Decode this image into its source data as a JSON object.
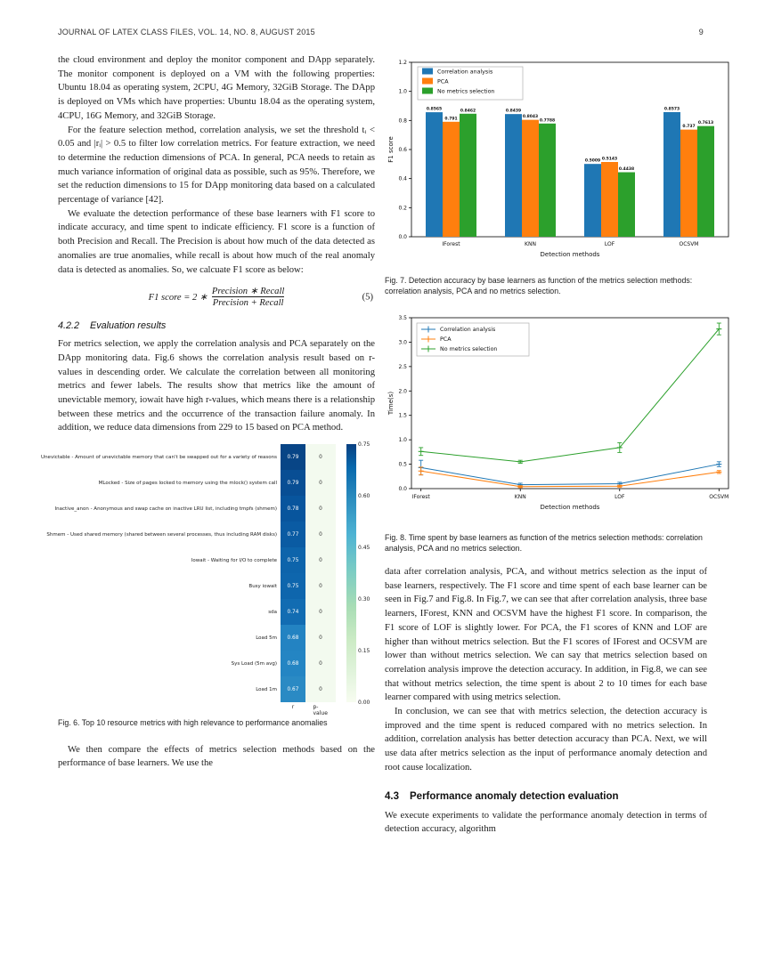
{
  "header": {
    "journal": "JOURNAL OF LATEX CLASS FILES, VOL. 14, NO. 8, AUGUST 2015",
    "page": "9"
  },
  "left_column": {
    "p1": "the cloud environment and deploy the monitor component and DApp separately. The monitor component is deployed on a VM with the following properties: Ubuntu 18.04 as operating system, 2CPU, 4G Memory, 32GiB Storage. The DApp is deployed on VMs which have properties: Ubuntu 18.04 as the operating system, 4CPU, 16G Memory, and 32GiB Storage.",
    "p2": "For the feature selection method, correlation analysis, we set the threshold tᵢ < 0.05 and |rᵢ| > 0.5 to filter low correlation metrics. For feature extraction, we need to determine the reduction dimensions of PCA. In general, PCA needs to retain as much variance information of original data as possible, such as 95%. Therefore, we set the reduction dimensions to 15 for DApp monitoring data based on a calculated percentage of variance [42].",
    "p3": "We evaluate the detection performance of these base learners with F1 score to indicate accuracy, and time spent to indicate efficiency. F1 score is a function of both Precision and Recall. The Precision is about how much of the data detected as anomalies are true anomalies, while recall is about how much of the real anomaly data is detected as anomalies. So, we calcuate F1 score as below:",
    "equation": {
      "lhs": "F1 score = 2 ∗",
      "numerator": "Precision ∗ Recall",
      "denominator": "Precision + Recall",
      "number": "(5)"
    },
    "section_422": {
      "num": "4.2.2",
      "title": "Evaluation results"
    },
    "p4": "For metrics selection, we apply the correlation analysis and PCA separately on the DApp monitoring data. Fig.6 shows the correlation analysis result based on r-values in descending order. We calculate the correlation between all monitoring metrics and fewer labels. The results show that metrics like the amount of unevictable memory, iowait have high r-values, which means there is a relationship between these metrics and the occurrence of the transaction failure anomaly. In addition, we reduce data dimensions from 229 to 15 based on PCA method.",
    "p5": "We then compare the effects of metrics selection methods based on the performance of base learners. We use the"
  },
  "right_column": {
    "p6": "data after correlation analysis, PCA, and without metrics selection as the input of base learners, respectively. The F1 score and time spent of each base learner can be seen in Fig.7 and Fig.8. In Fig.7, we can see that after correlation analysis, three base learners, IForest, KNN and OCSVM have the highest F1 score. In comparison, the F1 score of LOF is slightly lower. For PCA, the F1 scores of KNN and LOF are higher than without metrics selection. But the F1 scores of IForest and OCSVM are lower than without metrics selection. We can say that metrics selection based on correlation analysis improve the detection accuracy. In addition, in Fig.8, we can see that without metrics selection, the time spent is about 2 to 10 times for each base learner compared with using metrics selection.",
    "p7": "In conclusion, we can see that with metrics selection, the detection accuracy is improved and the time spent is reduced compared with no metrics selection. In addition, correlation analysis has better detection accuracy than PCA. Next, we will use data after metrics selection as the input of performance anomaly detection and root cause localization.",
    "section_43": {
      "num": "4.3",
      "title": "Performance anomaly detection evaluation"
    },
    "p8": "We execute experiments to validate the performance anomaly detection in terms of detection accuracy, algorithm"
  },
  "fig6": {
    "caption": "Fig. 6. Top 10 resource metrics with high relevance to performance anomalies",
    "chart_data": {
      "type": "heatmap",
      "columns": [
        "r",
        "p-value"
      ],
      "rows": [
        {
          "label": "Unevictable - Amount of unevictable memory that can't be swapped out for a variety of reasons",
          "r": "0.79",
          "p": "0",
          "color": "#084586"
        },
        {
          "label": "MLocked - Size of pages locked to memory using the mlock() system call",
          "r": "0.79",
          "p": "0",
          "color": "#084e94"
        },
        {
          "label": "Inactive_anon - Anonymous and swap cache on inactive LRU list, including tmpfs (shmem)",
          "r": "0.78",
          "p": "0",
          "color": "#08559d"
        },
        {
          "label": "Shmem - Used shared memory (shared between several processes, thus including RAM disks)",
          "r": "0.77",
          "p": "0",
          "color": "#0a5ba3"
        },
        {
          "label": "Iowait - Waiting for I/O to complete",
          "r": "0.75",
          "p": "0",
          "color": "#0d64ab"
        },
        {
          "label": "Busy iowait",
          "r": "0.75",
          "p": "0",
          "color": "#0e66ad"
        },
        {
          "label": "sda",
          "r": "0.74",
          "p": "0",
          "color": "#126cb2"
        },
        {
          "label": "Load 5m",
          "r": "0.68",
          "p": "0",
          "color": "#2383c2"
        },
        {
          "label": "Sys Load (5m avg)",
          "r": "0.68",
          "p": "0",
          "color": "#2485c3"
        },
        {
          "label": "Load 1m",
          "r": "0.67",
          "p": "0",
          "color": "#2a8ac4"
        }
      ],
      "p_cell_color": "#f3faef",
      "colorbar": {
        "ticks": [
          "0.75",
          "0.60",
          "0.45",
          "0.30",
          "0.15",
          "0.00"
        ]
      }
    }
  },
  "fig7": {
    "caption": "Fig. 7. Detection accuracy by base learners as function of the metrics selection methods: correlation analysis, PCA and no metrics selection.",
    "chart_data": {
      "type": "bar",
      "categories": [
        "IForest",
        "KNN",
        "LOF",
        "OCSVM"
      ],
      "series": [
        {
          "name": "Correlation analysis",
          "color": "#1f77b4",
          "labels": [
            "0.8565",
            "0.8439",
            "0.5009",
            "0.8573"
          ]
        },
        {
          "name": "PCA",
          "color": "#ff7f0e",
          "labels": [
            "0.791",
            "0.8043",
            "0.5143",
            "0.737"
          ]
        },
        {
          "name": "No metrics selection",
          "color": "#2ca02c",
          "labels": [
            "0.8462",
            "0.7788",
            "0.4438",
            "0.7613"
          ]
        }
      ],
      "title": "",
      "xlabel": "Detection methods",
      "ylabel": "F1 score",
      "ylim": [
        0,
        1.2
      ],
      "yticks": [
        "0.0",
        "0.2",
        "0.4",
        "0.6",
        "0.8",
        "1.0",
        "1.2"
      ],
      "legend_position": "upper left",
      "grid": false
    }
  },
  "fig8": {
    "caption": "Fig. 8. Time spent by base learners as function of the metrics selection methods: correlation analysis, PCA and no metrics selection.",
    "chart_data": {
      "type": "line",
      "categories": [
        "IForest",
        "KNN",
        "LOF",
        "OCSVM"
      ],
      "series": [
        {
          "name": "Correlation analysis",
          "color": "#1f77b4",
          "values": [
            0.43,
            0.08,
            0.1,
            0.5
          ],
          "errors": [
            0.15,
            0.03,
            0.03,
            0.05
          ]
        },
        {
          "name": "PCA",
          "color": "#ff7f0e",
          "values": [
            0.36,
            0.04,
            0.05,
            0.34
          ],
          "errors": [
            0.08,
            0.02,
            0.02,
            0.03
          ]
        },
        {
          "name": "No metrics selection",
          "color": "#2ca02c",
          "values": [
            0.76,
            0.55,
            0.84,
            3.27
          ],
          "errors": [
            0.08,
            0.03,
            0.1,
            0.12
          ]
        }
      ],
      "title": "",
      "xlabel": "Detection methods",
      "ylabel": "Time(s)",
      "ylim": [
        0,
        3.5
      ],
      "yticks": [
        "0.0",
        "0.5",
        "1.0",
        "1.5",
        "2.0",
        "2.5",
        "3.0",
        "3.5"
      ],
      "legend_position": "upper left",
      "grid": false
    }
  }
}
